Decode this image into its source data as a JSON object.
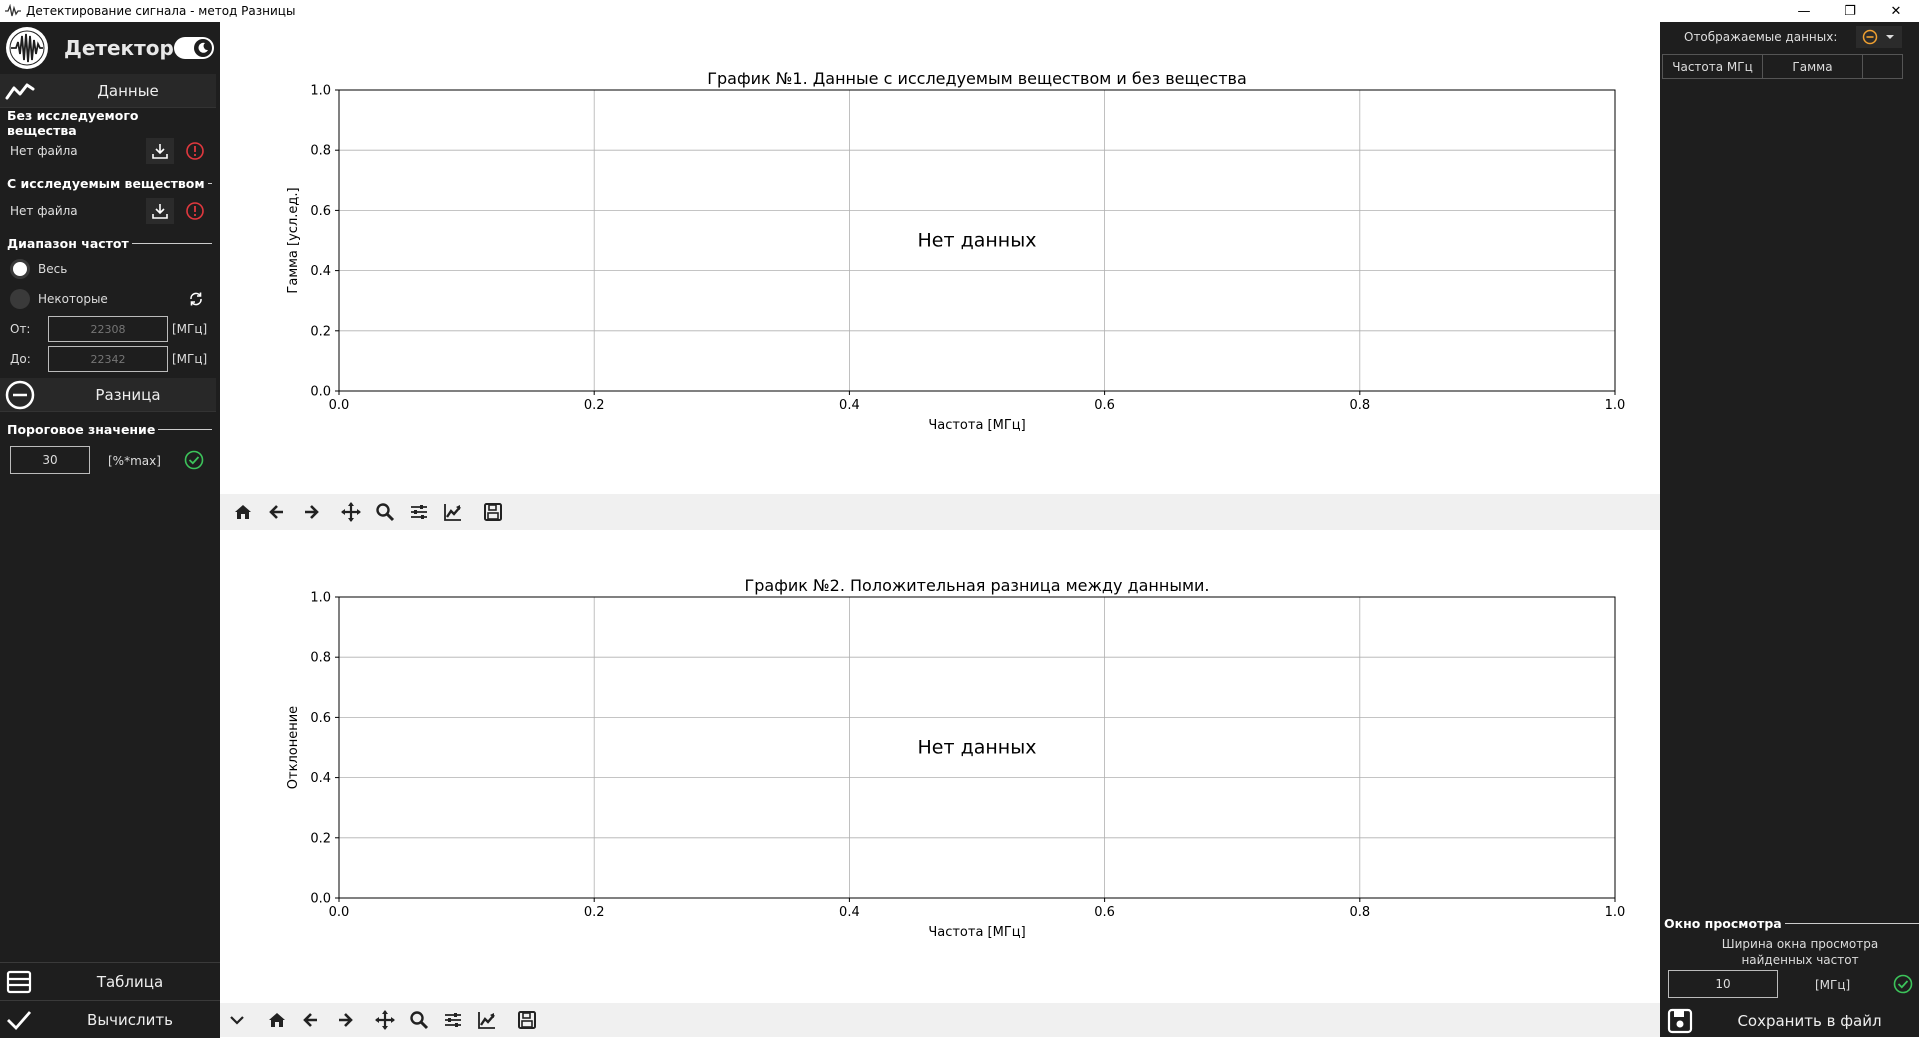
{
  "window": {
    "title": "Детектирование сигнала - метод Разницы",
    "minimize": "—",
    "restore": "❐",
    "close": "✕"
  },
  "sidebar": {
    "app_name": "Детектор",
    "data_section": "Данные",
    "without_substance": {
      "title": "Без исследуемого вещества",
      "file": "Нет файла"
    },
    "with_substance": {
      "title": "С исследуемым веществом",
      "file": "Нет файла"
    },
    "freq_range": {
      "title": "Диапазон частот",
      "option_all": "Весь",
      "option_some": "Некоторые",
      "from_label": "От:",
      "from_placeholder": "22308",
      "to_label": "До:",
      "to_placeholder": "22342",
      "unit": "[МГц]"
    },
    "diff_section": "Разница",
    "threshold": {
      "title": "Пороговое значение",
      "value": "30",
      "unit": "[%*max]"
    },
    "table_button": "Таблица",
    "compute_button": "Вычислить"
  },
  "chart_data": [
    {
      "type": "line",
      "title": "График №1. Данные с исследуемым веществом и без вещества",
      "xlabel": "Частота [МГц]",
      "ylabel": "Гамма [усл.ед.]",
      "xlim": [
        0,
        1
      ],
      "ylim": [
        0,
        1
      ],
      "xticks": [
        "0.0",
        "0.2",
        "0.4",
        "0.6",
        "0.8",
        "1.0"
      ],
      "yticks": [
        "0.0",
        "0.2",
        "0.4",
        "0.6",
        "0.8",
        "1.0"
      ],
      "grid": true,
      "annotation": "Нет данных",
      "series": []
    },
    {
      "type": "line",
      "title": "График №2. Положительная разница между данными.",
      "xlabel": "Частота [МГц]",
      "ylabel": "Отклонение",
      "xlim": [
        0,
        1
      ],
      "ylim": [
        0,
        1
      ],
      "xticks": [
        "0.0",
        "0.2",
        "0.4",
        "0.6",
        "0.8",
        "1.0"
      ],
      "yticks": [
        "0.0",
        "0.2",
        "0.4",
        "0.6",
        "0.8",
        "1.0"
      ],
      "grid": true,
      "annotation": "Нет данных",
      "series": []
    }
  ],
  "toolbar_icons": [
    "home-icon",
    "back-icon",
    "forward-icon",
    "pan-icon",
    "zoom-icon",
    "configure-subplots-icon",
    "edit-axis-icon",
    "save-figure-icon"
  ],
  "right_panel": {
    "displayed_data_label": "Отображаемые данных:",
    "table_headers": [
      "Частота МГц",
      "Гамма",
      ""
    ],
    "view_window": {
      "title": "Окно просмотра",
      "description": "Ширина окна просмотра найденных частот",
      "value": "10",
      "unit": "[МГц]"
    },
    "save_button": "Сохранить в файл"
  },
  "colors": {
    "sidebar_bg": "#1e1e1e",
    "error_red": "#e0383e",
    "ok_green": "#3cc35a",
    "accent_orange": "#f0a030"
  }
}
